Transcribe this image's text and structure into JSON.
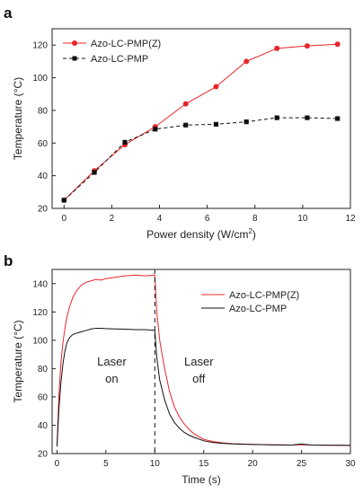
{
  "chart_data": [
    {
      "panel_label": "a",
      "type": "line",
      "xlabel": "Power density (W/cm",
      "xlabel_sup": "2",
      "xlabel_tail": ")",
      "ylabel": "Temperature (°C)",
      "xlim": [
        -0.5,
        12
      ],
      "ylim": [
        20,
        130
      ],
      "xticks": [
        0,
        2,
        4,
        6,
        8,
        10,
        12
      ],
      "yticks": [
        20,
        40,
        60,
        80,
        100,
        120
      ],
      "grid": false,
      "legend_position": "top-left",
      "series": [
        {
          "name": "Azo-LC-PMP(Z)",
          "color": "#e8252a",
          "marker": "circle",
          "line_style": "solid",
          "x": [
            0,
            1.27,
            2.55,
            3.82,
            5.1,
            6.37,
            7.64,
            8.92,
            10.19,
            11.46
          ],
          "y": [
            25,
            43,
            59,
            70,
            84,
            94.5,
            110,
            118,
            119.5,
            120.5
          ]
        },
        {
          "name": "Azo-LC-PMP",
          "color": "#111111",
          "marker": "square",
          "line_style": "dashed",
          "x": [
            0,
            1.27,
            2.55,
            3.82,
            5.1,
            6.37,
            7.64,
            8.92,
            10.19,
            11.46
          ],
          "y": [
            25,
            42,
            60.5,
            68.5,
            71,
            71.5,
            73,
            75.5,
            75.5,
            75
          ]
        }
      ]
    },
    {
      "panel_label": "b",
      "type": "line",
      "xlabel": "Time (s)",
      "ylabel": "Temperature (°C)",
      "xlim": [
        -0.5,
        30
      ],
      "ylim": [
        20,
        150
      ],
      "xticks": [
        0,
        5,
        10,
        15,
        20,
        25,
        30
      ],
      "yticks": [
        20,
        40,
        60,
        80,
        100,
        120,
        140
      ],
      "grid": false,
      "legend_position": "top-right",
      "annotations": [
        {
          "lines": [
            "Laser",
            "on"
          ],
          "x": 5.6,
          "y": 82
        },
        {
          "lines": [
            "Laser",
            "off"
          ],
          "x": 14.5,
          "y": 82
        }
      ],
      "vline": {
        "x": 10,
        "style": "dashed"
      },
      "series": [
        {
          "name": "Azo-LC-PMP(Z)",
          "color": "#e8252a",
          "x": [
            0,
            0.2,
            0.4,
            0.6,
            0.8,
            1,
            1.3,
            1.6,
            2,
            2.5,
            3,
            3.5,
            4,
            4.5,
            5,
            5.5,
            6,
            7,
            8,
            9,
            9.95,
            10,
            10.2,
            10.5,
            11,
            11.5,
            12,
            12.5,
            13,
            13.5,
            14,
            15,
            16,
            17,
            18,
            20,
            22,
            24,
            25,
            26,
            28,
            30
          ],
          "y": [
            25,
            62,
            84,
            98,
            108,
            116,
            124,
            130,
            135,
            139,
            141,
            142,
            143,
            142.5,
            143.5,
            144,
            144.5,
            145.5,
            146,
            145.5,
            146,
            146,
            120,
            100,
            80,
            64,
            53,
            46,
            41,
            37,
            34,
            30,
            28.5,
            27.5,
            27,
            26.5,
            26.2,
            26,
            26.3,
            26,
            25.9,
            25.8
          ]
        },
        {
          "name": "Azo-LC-PMP",
          "color": "#111111",
          "x": [
            0,
            0.2,
            0.4,
            0.6,
            0.8,
            1,
            1.3,
            1.6,
            2,
            2.5,
            3,
            3.5,
            4,
            4.5,
            5,
            6,
            7,
            8,
            9,
            9.95,
            10,
            10.2,
            10.5,
            11,
            11.5,
            12,
            12.5,
            13,
            13.5,
            14,
            15,
            16,
            17,
            18,
            20,
            22,
            24,
            25,
            26,
            28,
            30
          ],
          "y": [
            25,
            52,
            70,
            83,
            92,
            98,
            102,
            104,
            105,
            106,
            107,
            108,
            108.5,
            108.5,
            108.2,
            108,
            107.8,
            107.5,
            107.5,
            107,
            107,
            88,
            72,
            58,
            48,
            42,
            38,
            35,
            33,
            31.5,
            29,
            27.8,
            27.2,
            26.8,
            26.4,
            26.2,
            26,
            26.8,
            26,
            25.9,
            25.8
          ]
        }
      ]
    }
  ]
}
